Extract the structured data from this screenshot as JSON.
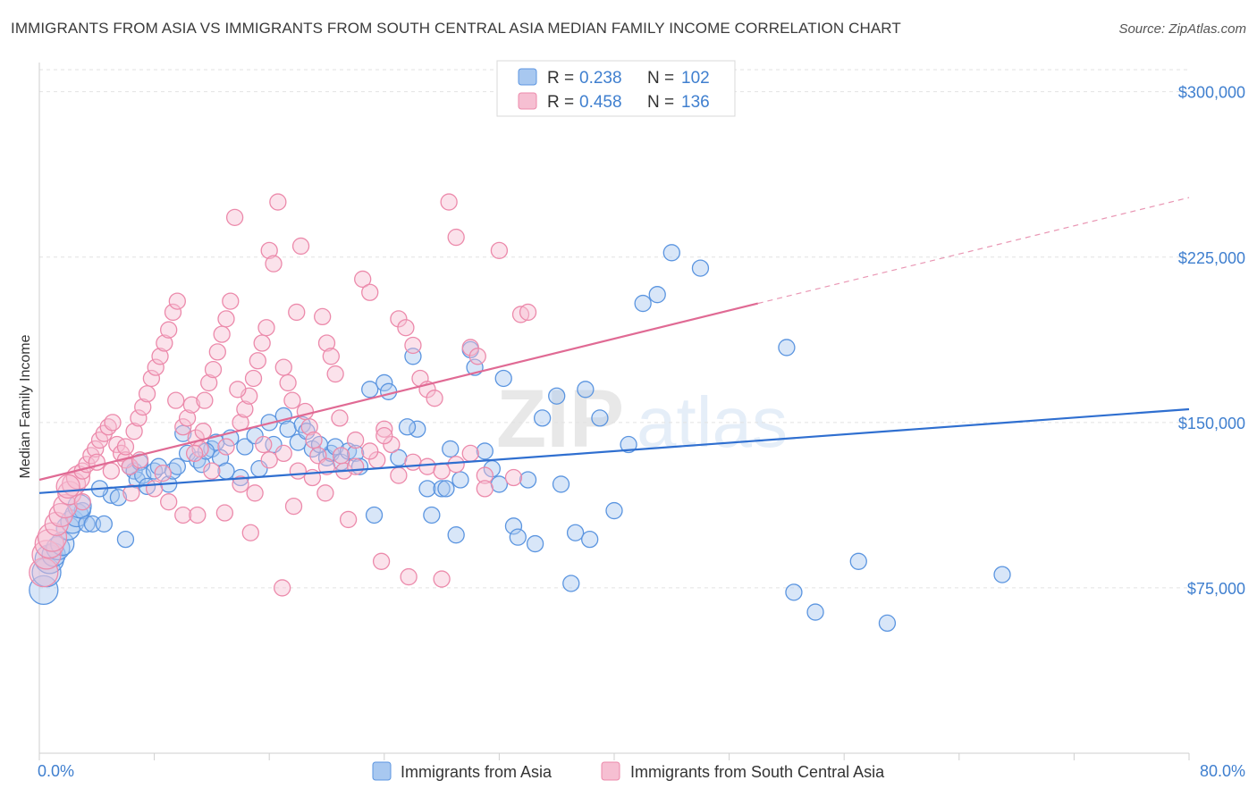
{
  "header": {
    "title": "IMMIGRANTS FROM ASIA VS IMMIGRANTS FROM SOUTH CENTRAL ASIA MEDIAN FAMILY INCOME CORRELATION CHART",
    "source": "Source: ZipAtlas.com"
  },
  "watermark": {
    "part1": "ZIP",
    "part2": "atlas"
  },
  "legend": {
    "r_label": "R =",
    "n_label": "N =",
    "rows": [
      {
        "r": "0.238",
        "n": "102"
      },
      {
        "r": "0.458",
        "n": "136"
      }
    ]
  },
  "colors": {
    "blue": "#5b95e0",
    "blue_fill": "#a8c8f0",
    "blue_line": "#2f6fd0",
    "pink": "#ec8aab",
    "pink_fill": "#f6bfd2",
    "pink_line": "#e06a94"
  },
  "chart_data": {
    "type": "scatter",
    "title": "IMMIGRANTS FROM ASIA VS IMMIGRANTS FROM SOUTH CENTRAL ASIA MEDIAN FAMILY INCOME CORRELATION CHART",
    "xlabel": "",
    "ylabel": "Median Family Income",
    "x_tick_labels": [
      "0.0%",
      "80.0%"
    ],
    "y_tick_labels": [
      "$75,000",
      "$150,000",
      "$225,000",
      "$300,000"
    ],
    "y_ticks": [
      75000,
      150000,
      225000,
      300000
    ],
    "xlim": [
      0,
      80
    ],
    "ylim": [
      0,
      310000
    ],
    "grid": true,
    "legend_placement": "top-center",
    "series": [
      {
        "name": "Immigrants from Asia",
        "color": "#5b95e0",
        "r": 0.238,
        "n": 102,
        "trend": {
          "x": [
            0,
            80
          ],
          "y": [
            118000,
            156000
          ],
          "dashed_x": null
        },
        "points": [
          [
            0.3,
            74000
          ],
          [
            0.5,
            82000
          ],
          [
            0.7,
            88000
          ],
          [
            1.0,
            90000
          ],
          [
            1.3,
            93000
          ],
          [
            1.6,
            95000
          ],
          [
            2.0,
            102000
          ],
          [
            2.3,
            105000
          ],
          [
            2.6,
            108000
          ],
          [
            3.0,
            110000
          ],
          [
            3.3,
            104000
          ],
          [
            2.8,
            112000
          ],
          [
            6.0,
            97000
          ],
          [
            6.3,
            130000
          ],
          [
            6.6,
            128000
          ],
          [
            6.8,
            124000
          ],
          [
            7.0,
            132000
          ],
          [
            7.2,
            126000
          ],
          [
            7.5,
            121000
          ],
          [
            8.0,
            128000
          ],
          [
            8.3,
            130000
          ],
          [
            9.0,
            122000
          ],
          [
            9.3,
            128000
          ],
          [
            10.0,
            145000
          ],
          [
            10.3,
            136000
          ],
          [
            11.0,
            133000
          ],
          [
            11.3,
            131000
          ],
          [
            12.0,
            138000
          ],
          [
            12.3,
            141000
          ],
          [
            12.6,
            134000
          ],
          [
            13.0,
            128000
          ],
          [
            13.3,
            143000
          ],
          [
            14.0,
            125000
          ],
          [
            14.3,
            139000
          ],
          [
            15.0,
            144000
          ],
          [
            16.0,
            150000
          ],
          [
            16.3,
            140000
          ],
          [
            17.0,
            153000
          ],
          [
            17.3,
            147000
          ],
          [
            18.0,
            141000
          ],
          [
            18.3,
            149000
          ],
          [
            19.0,
            138000
          ],
          [
            20.0,
            134000
          ],
          [
            20.3,
            136000
          ],
          [
            20.6,
            139000
          ],
          [
            21.0,
            132000
          ],
          [
            21.5,
            137000
          ],
          [
            22.0,
            136000
          ],
          [
            22.3,
            130000
          ],
          [
            23.0,
            165000
          ],
          [
            23.3,
            108000
          ],
          [
            24.0,
            168000
          ],
          [
            24.3,
            164000
          ],
          [
            25.0,
            134000
          ],
          [
            26.0,
            180000
          ],
          [
            26.3,
            147000
          ],
          [
            27.0,
            120000
          ],
          [
            27.3,
            108000
          ],
          [
            28.0,
            120000
          ],
          [
            28.3,
            120000
          ],
          [
            29.0,
            99000
          ],
          [
            29.3,
            124000
          ],
          [
            30.0,
            183000
          ],
          [
            30.3,
            175000
          ],
          [
            31.0,
            137000
          ],
          [
            32.0,
            122000
          ],
          [
            32.3,
            170000
          ],
          [
            33.0,
            103000
          ],
          [
            33.3,
            98000
          ],
          [
            34.0,
            124000
          ],
          [
            35.0,
            152000
          ],
          [
            36.0,
            162000
          ],
          [
            36.3,
            122000
          ],
          [
            37.0,
            77000
          ],
          [
            37.3,
            100000
          ],
          [
            38.0,
            165000
          ],
          [
            38.3,
            97000
          ],
          [
            39.0,
            152000
          ],
          [
            40.0,
            110000
          ],
          [
            41.0,
            140000
          ],
          [
            42.0,
            204000
          ],
          [
            43.0,
            208000
          ],
          [
            44.0,
            227000
          ],
          [
            46.0,
            220000
          ],
          [
            52.0,
            184000
          ],
          [
            52.5,
            73000
          ],
          [
            54.0,
            64000
          ],
          [
            57.0,
            87000
          ],
          [
            59.0,
            59000
          ],
          [
            67.0,
            81000
          ],
          [
            5.0,
            117000
          ],
          [
            5.5,
            116000
          ],
          [
            3.7,
            104000
          ],
          [
            4.2,
            120000
          ],
          [
            9.6,
            130000
          ],
          [
            11.6,
            137000
          ],
          [
            15.3,
            129000
          ],
          [
            18.6,
            146000
          ],
          [
            19.5,
            140000
          ],
          [
            25.6,
            148000
          ],
          [
            28.6,
            138000
          ],
          [
            31.5,
            129000
          ],
          [
            34.5,
            95000
          ],
          [
            4.5,
            104000
          ]
        ]
      },
      {
        "name": "Immigrants from South Central Asia",
        "color": "#ec8aab",
        "r": 0.458,
        "n": 136,
        "trend": {
          "x": [
            0,
            50
          ],
          "y": [
            124000,
            204000
          ],
          "dashed_x": [
            50,
            80
          ],
          "dashed_y": [
            204000,
            252000
          ]
        },
        "points": [
          [
            0.3,
            82000
          ],
          [
            0.5,
            90000
          ],
          [
            0.7,
            95000
          ],
          [
            0.9,
            98000
          ],
          [
            1.2,
            104000
          ],
          [
            1.5,
            108000
          ],
          [
            1.8,
            112000
          ],
          [
            2.1,
            118000
          ],
          [
            2.4,
            122000
          ],
          [
            2.7,
            125000
          ],
          [
            3.0,
            128000
          ],
          [
            3.3,
            131000
          ],
          [
            3.6,
            135000
          ],
          [
            3.9,
            138000
          ],
          [
            4.2,
            142000
          ],
          [
            4.5,
            145000
          ],
          [
            4.8,
            148000
          ],
          [
            5.1,
            150000
          ],
          [
            5.4,
            140000
          ],
          [
            5.7,
            136000
          ],
          [
            6.0,
            133000
          ],
          [
            6.3,
            130000
          ],
          [
            6.6,
            146000
          ],
          [
            6.9,
            152000
          ],
          [
            7.2,
            157000
          ],
          [
            7.5,
            163000
          ],
          [
            7.8,
            170000
          ],
          [
            8.1,
            175000
          ],
          [
            8.4,
            180000
          ],
          [
            8.7,
            186000
          ],
          [
            9.0,
            192000
          ],
          [
            9.3,
            200000
          ],
          [
            9.6,
            205000
          ],
          [
            10.0,
            148000
          ],
          [
            10.3,
            152000
          ],
          [
            10.6,
            158000
          ],
          [
            10.9,
            143000
          ],
          [
            11.2,
            138000
          ],
          [
            11.5,
            160000
          ],
          [
            11.8,
            168000
          ],
          [
            12.1,
            174000
          ],
          [
            12.4,
            182000
          ],
          [
            12.7,
            190000
          ],
          [
            13.0,
            197000
          ],
          [
            13.3,
            205000
          ],
          [
            13.6,
            243000
          ],
          [
            14.0,
            150000
          ],
          [
            14.3,
            156000
          ],
          [
            14.6,
            162000
          ],
          [
            14.9,
            170000
          ],
          [
            15.2,
            178000
          ],
          [
            15.5,
            186000
          ],
          [
            15.8,
            193000
          ],
          [
            16.0,
            228000
          ],
          [
            16.3,
            222000
          ],
          [
            16.6,
            250000
          ],
          [
            17.0,
            175000
          ],
          [
            17.3,
            168000
          ],
          [
            17.6,
            160000
          ],
          [
            17.9,
            200000
          ],
          [
            18.2,
            230000
          ],
          [
            18.5,
            155000
          ],
          [
            18.8,
            148000
          ],
          [
            19.1,
            142000
          ],
          [
            19.4,
            135000
          ],
          [
            19.7,
            198000
          ],
          [
            20.0,
            186000
          ],
          [
            20.3,
            180000
          ],
          [
            20.6,
            172000
          ],
          [
            20.9,
            152000
          ],
          [
            21.2,
            128000
          ],
          [
            21.5,
            106000
          ],
          [
            22.0,
            130000
          ],
          [
            22.5,
            215000
          ],
          [
            23.0,
            209000
          ],
          [
            23.5,
            133000
          ],
          [
            24.0,
            147000
          ],
          [
            24.5,
            140000
          ],
          [
            25.0,
            197000
          ],
          [
            25.5,
            193000
          ],
          [
            26.0,
            185000
          ],
          [
            26.5,
            170000
          ],
          [
            27.0,
            165000
          ],
          [
            27.5,
            161000
          ],
          [
            28.0,
            79000
          ],
          [
            28.5,
            250000
          ],
          [
            29.0,
            234000
          ],
          [
            30.0,
            184000
          ],
          [
            30.5,
            180000
          ],
          [
            31.0,
            126000
          ],
          [
            32.0,
            228000
          ],
          [
            33.0,
            125000
          ],
          [
            33.5,
            199000
          ],
          [
            34.0,
            200000
          ],
          [
            2.0,
            121000
          ],
          [
            3.0,
            114000
          ],
          [
            4.0,
            132000
          ],
          [
            5.0,
            128000
          ],
          [
            6.0,
            139000
          ],
          [
            7.0,
            133000
          ],
          [
            8.0,
            120000
          ],
          [
            9.0,
            114000
          ],
          [
            10.0,
            108000
          ],
          [
            11.0,
            108000
          ],
          [
            12.0,
            128000
          ],
          [
            13.0,
            139000
          ],
          [
            14.0,
            122000
          ],
          [
            15.0,
            118000
          ],
          [
            16.0,
            133000
          ],
          [
            17.0,
            136000
          ],
          [
            18.0,
            128000
          ],
          [
            19.0,
            125000
          ],
          [
            20.0,
            130000
          ],
          [
            21.0,
            135000
          ],
          [
            22.0,
            142000
          ],
          [
            23.0,
            137000
          ],
          [
            24.0,
            144000
          ],
          [
            25.0,
            126000
          ],
          [
            26.0,
            132000
          ],
          [
            27.0,
            130000
          ],
          [
            28.0,
            128000
          ],
          [
            29.0,
            131000
          ],
          [
            30.0,
            136000
          ],
          [
            31.0,
            120000
          ],
          [
            9.5,
            160000
          ],
          [
            11.4,
            146000
          ],
          [
            13.8,
            165000
          ],
          [
            15.6,
            140000
          ],
          [
            17.7,
            112000
          ],
          [
            19.9,
            118000
          ],
          [
            23.8,
            87000
          ],
          [
            25.7,
            80000
          ],
          [
            6.4,
            118000
          ],
          [
            8.6,
            127000
          ],
          [
            10.8,
            136000
          ],
          [
            12.9,
            109000
          ],
          [
            14.7,
            100000
          ],
          [
            16.9,
            75000
          ]
        ]
      }
    ]
  }
}
